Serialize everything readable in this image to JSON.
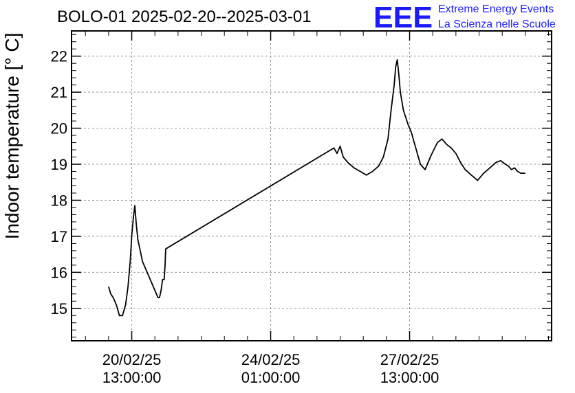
{
  "chart_data": {
    "type": "line",
    "title": "BOLO-01 2025-02-20--2025-03-01",
    "ylabel": "Indoor temperature [° C]",
    "xlabel": "",
    "ylim": [
      14.1,
      22.7
    ],
    "xlim": [
      -1.95,
      13.6
    ],
    "x_unit": "days after 20/02/25 13:00:00",
    "yticks": [
      15,
      16,
      17,
      18,
      19,
      20,
      21,
      22
    ],
    "xticks": [
      {
        "pos": 0,
        "line1": "20/02/25",
        "line2": "13:00:00"
      },
      {
        "pos": 4.5,
        "line1": "24/02/25",
        "line2": "01:00:00"
      },
      {
        "pos": 9,
        "line1": "27/02/25",
        "line2": "13:00:00"
      }
    ],
    "grid": true,
    "series": [
      {
        "color": "#000000",
        "x": [
          -0.75,
          -0.68,
          -0.6,
          -0.5,
          -0.4,
          -0.3,
          -0.2,
          -0.12,
          -0.05,
          0.0,
          0.05,
          0.1,
          0.15,
          0.2,
          0.25,
          0.3,
          0.35,
          0.45,
          0.55,
          0.65,
          0.75,
          0.85,
          0.9,
          0.95,
          1.0,
          1.05,
          1.08,
          1.1,
          6.55,
          6.65,
          6.75,
          6.85,
          7.0,
          7.2,
          7.4,
          7.6,
          7.8,
          8.0,
          8.15,
          8.3,
          8.4,
          8.5,
          8.55,
          8.6,
          8.65,
          8.7,
          8.8,
          8.95,
          9.05,
          9.15,
          9.25,
          9.35,
          9.5,
          9.7,
          9.9,
          10.05,
          10.2,
          10.35,
          10.5,
          10.65,
          10.8,
          11.0,
          11.2,
          11.4,
          11.6,
          11.8,
          11.95,
          12.1,
          12.2,
          12.3,
          12.4,
          12.5,
          12.6,
          12.75
        ],
        "y": [
          15.6,
          15.4,
          15.3,
          15.1,
          14.8,
          14.8,
          15.1,
          15.6,
          16.3,
          17.0,
          17.5,
          17.85,
          17.3,
          16.9,
          16.7,
          16.5,
          16.3,
          16.1,
          15.9,
          15.7,
          15.5,
          15.3,
          15.3,
          15.5,
          15.8,
          15.8,
          16.2,
          16.65,
          19.45,
          19.3,
          19.5,
          19.2,
          19.05,
          18.9,
          18.8,
          18.7,
          18.8,
          18.95,
          19.2,
          19.7,
          20.5,
          21.2,
          21.7,
          21.9,
          21.5,
          21.0,
          20.5,
          20.1,
          19.9,
          19.6,
          19.3,
          19.0,
          18.85,
          19.25,
          19.6,
          19.7,
          19.55,
          19.45,
          19.3,
          19.05,
          18.85,
          18.7,
          18.55,
          18.75,
          18.9,
          19.05,
          19.1,
          19.0,
          18.95,
          18.85,
          18.9,
          18.8,
          18.75,
          18.75
        ]
      }
    ]
  },
  "logo": {
    "mark": "EEE",
    "line1": "Extreme Energy Events",
    "line2": "La Scienza nelle Scuole"
  }
}
